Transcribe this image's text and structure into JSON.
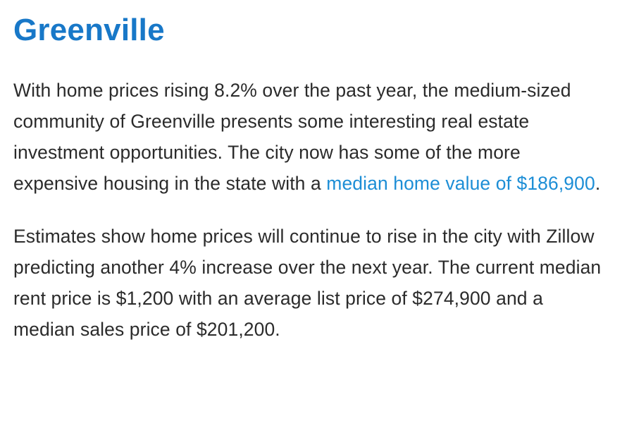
{
  "article": {
    "title": "Greenville",
    "paragraph1": {
      "before_link": "With home prices rising 8.2% over the past year, the medium-sized community of Greenville presents some interesting real estate investment opportunities. The city now has some of the more expensive housing in the state with a ",
      "link_text": "median home value of $186,900",
      "after_link": "."
    },
    "paragraph2": "Estimates show home prices will continue to rise in the city with Zillow predicting another 4% increase over the next year. The current median rent price is $1,200 with an average list price of $274,900 and a median sales price of $201,200.",
    "colors": {
      "title": "#1878c8",
      "link": "#1d8ed6",
      "body_text": "#2b2b2b"
    }
  }
}
